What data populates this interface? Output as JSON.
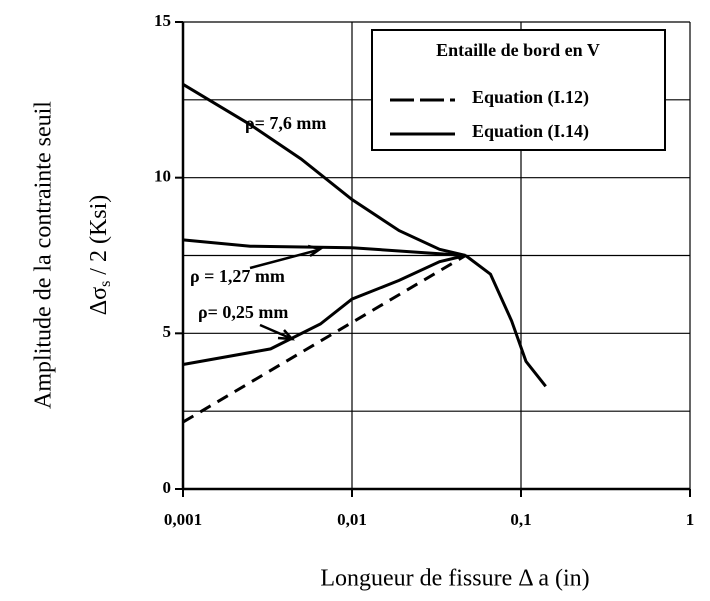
{
  "chart_data": {
    "type": "line",
    "xlabel": "Longueur de fissure  Δ a (in)",
    "ylabel": "Amplitude de la contrainte seuil",
    "ylabel2": [
      "Δσ",
      "s",
      " / 2   (Ksi)"
    ],
    "xscale": "log",
    "xlim": [
      0.001,
      1
    ],
    "xticks": [
      {
        "value": 0.001,
        "label": "0,001"
      },
      {
        "value": 0.01,
        "label": "0,01"
      },
      {
        "value": 0.1,
        "label": "0,1"
      },
      1
    ],
    "ylim": [
      0,
      15
    ],
    "yticks": [
      0,
      5,
      10,
      15
    ],
    "yminor": [
      2.5,
      7.5,
      12.5
    ],
    "grid": true,
    "legend_title": "Entaille de bord en V",
    "legend": "upper right",
    "series": [
      {
        "name": "Equation  (I.12)",
        "color": "#000000",
        "dashed": true,
        "x": [
          0.001,
          0.047
        ],
        "values": [
          2.15,
          7.5
        ]
      },
      {
        "name": "Equation  (I.14)",
        "color": "#000000",
        "dashed": false,
        "x": [
          0.001,
          0.0025,
          0.005,
          0.01,
          0.019,
          0.033,
          0.047,
          null,
          0.001,
          0.0025,
          0.01,
          0.025,
          0.047,
          null,
          0.001,
          0.0033,
          0.0065,
          0.01,
          0.019,
          0.033,
          0.047,
          null,
          0.047,
          0.066,
          0.088,
          0.107,
          0.14
        ],
        "values": [
          13.0,
          11.7,
          10.6,
          9.3,
          8.3,
          7.7,
          7.5,
          null,
          8.0,
          7.8,
          7.75,
          7.6,
          7.5,
          null,
          4.0,
          4.5,
          5.3,
          6.1,
          6.7,
          7.3,
          7.5,
          null,
          7.5,
          6.9,
          5.4,
          4.1,
          3.3
        ]
      }
    ],
    "annotations": [
      "ρ= 7,6 mm",
      "ρ = 1,27 mm",
      "ρ= 0,25 mm"
    ]
  }
}
